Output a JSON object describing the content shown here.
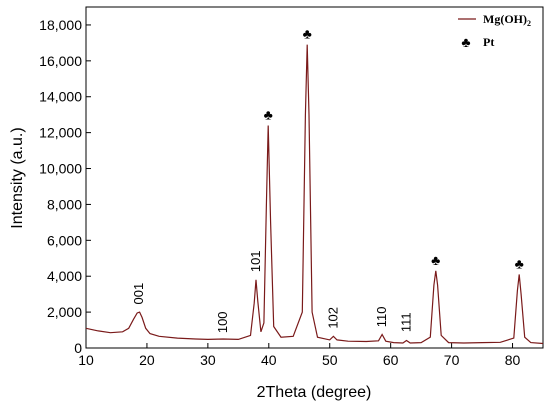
{
  "chart_data": {
    "type": "line",
    "xlabel": "2Theta (degree)",
    "ylabel": "Intensity (a.u.)",
    "xlim": [
      10,
      85
    ],
    "ylim": [
      0,
      19000
    ],
    "x_ticks": [
      10,
      20,
      30,
      40,
      50,
      60,
      70,
      80
    ],
    "y_ticks": [
      0,
      2000,
      4000,
      6000,
      8000,
      10000,
      12000,
      14000,
      16000,
      18000
    ],
    "y_tick_labels": [
      "0",
      "2,000",
      "4,000",
      "6,000",
      "8,000",
      "10,000",
      "12,000",
      "14,000",
      "16,000",
      "18,000"
    ],
    "grid": false,
    "legend_position": "top-right",
    "line_color": "#7a1a1a",
    "series": [
      {
        "name": "Mg(OH)",
        "name_subscript": "2",
        "x": [
          10,
          12,
          14,
          16,
          17,
          17.8,
          18.4,
          18.8,
          19.2,
          19.8,
          20.5,
          22,
          25,
          28,
          30,
          32.5,
          35,
          37,
          37.6,
          37.9,
          38.2,
          38.7,
          39.2,
          39.6,
          39.9,
          40.3,
          40.8,
          42,
          44,
          45.5,
          46.0,
          46.3,
          46.6,
          47.1,
          48,
          50,
          50.6,
          51.2,
          53,
          56,
          58,
          58.6,
          59.2,
          60.5,
          62,
          62.6,
          63.2,
          65,
          66.5,
          67.1,
          67.4,
          67.7,
          68.3,
          69.5,
          72,
          75,
          78,
          80.2,
          80.8,
          81.1,
          81.4,
          82,
          83,
          85
        ],
        "y": [
          1100,
          950,
          850,
          900,
          1100,
          1600,
          1950,
          2000,
          1700,
          1100,
          800,
          650,
          550,
          500,
          480,
          500,
          480,
          700,
          2500,
          3800,
          2600,
          900,
          1400,
          8000,
          12400,
          7000,
          1200,
          600,
          650,
          2000,
          13000,
          16900,
          13000,
          2000,
          600,
          450,
          650,
          450,
          380,
          360,
          400,
          750,
          380,
          300,
          280,
          420,
          280,
          300,
          600,
          3500,
          4300,
          3500,
          700,
          300,
          280,
          300,
          320,
          550,
          3200,
          4100,
          3000,
          600,
          300,
          250
        ]
      }
    ],
    "annotations": [
      {
        "text": "001",
        "x": 18.7,
        "y": 2250
      },
      {
        "text": "100",
        "x": 32.5,
        "y": 650
      },
      {
        "text": "101",
        "x": 37.9,
        "y": 4050
      },
      {
        "text": "102",
        "x": 50.6,
        "y": 900
      },
      {
        "text": "110",
        "x": 58.6,
        "y": 950
      },
      {
        "text": "111",
        "x": 62.6,
        "y": 650
      }
    ],
    "pt_markers": [
      {
        "x": 39.9,
        "y": 12400
      },
      {
        "x": 46.3,
        "y": 16900
      },
      {
        "x": 67.4,
        "y": 4300
      },
      {
        "x": 81.1,
        "y": 4100
      }
    ],
    "legend": {
      "line_label": "Mg(OH)",
      "line_label_subscript": "2",
      "marker_symbol": "♣",
      "marker_label": "Pt"
    }
  }
}
